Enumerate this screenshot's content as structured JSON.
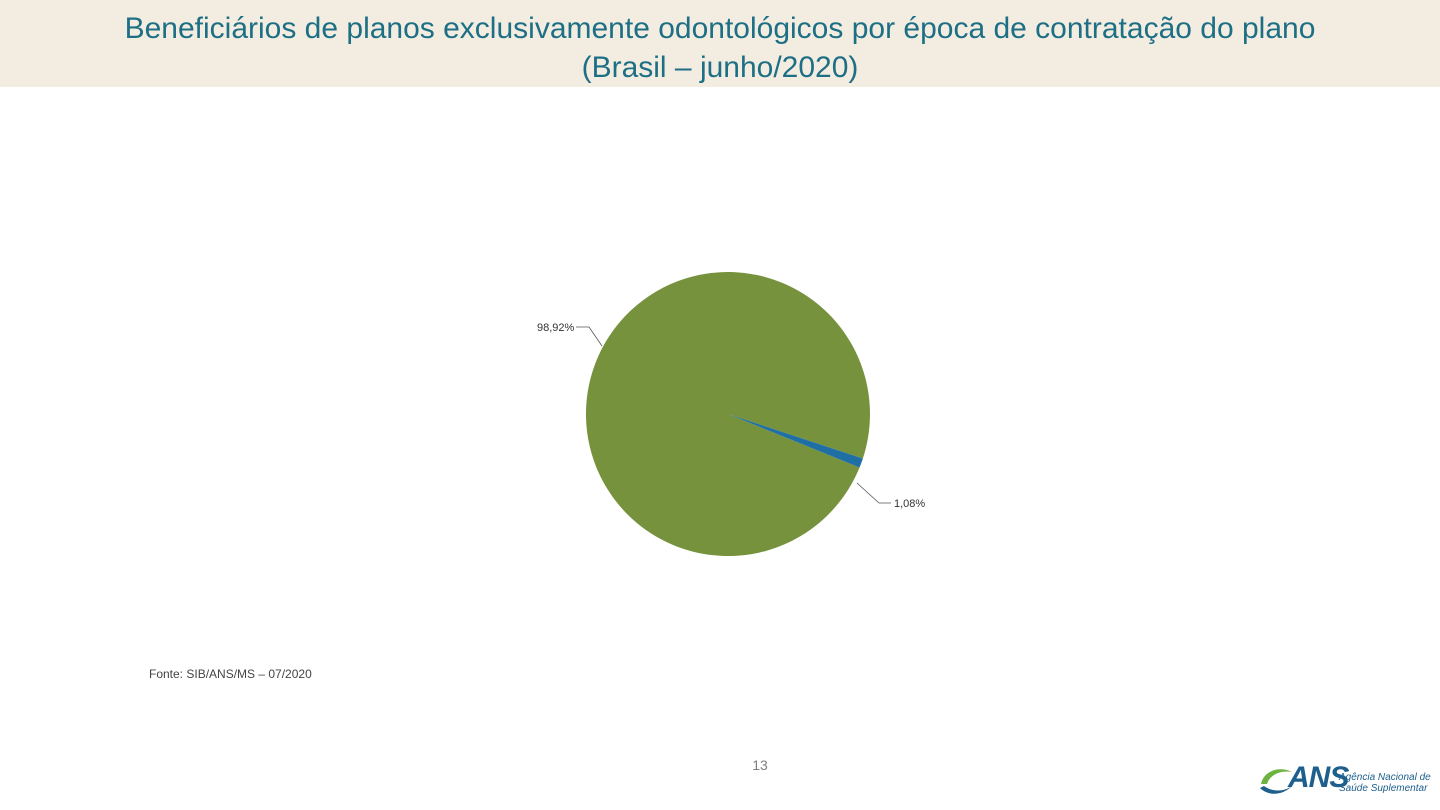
{
  "header": {
    "title_line1": "Beneficiários de planos exclusivamente odontológicos por época de contratação do plano",
    "title_line2": "(Brasil – junho/2020)"
  },
  "chart_data": {
    "type": "pie",
    "slices": [
      {
        "label": "98,92%",
        "value": 98.92,
        "color": "#76923c"
      },
      {
        "label": "1,08%",
        "value": 1.08,
        "color": "#1f6fa5"
      }
    ]
  },
  "footer": {
    "source": "Fonte: SIB/ANS/MS – 07/2020",
    "page_number": "13"
  },
  "logo": {
    "mark": "ANS",
    "line1": "Agência Nacional de",
    "line2": "Saúde Suplementar",
    "colors": {
      "green": "#6db33f",
      "blue": "#1e5f8c"
    }
  }
}
